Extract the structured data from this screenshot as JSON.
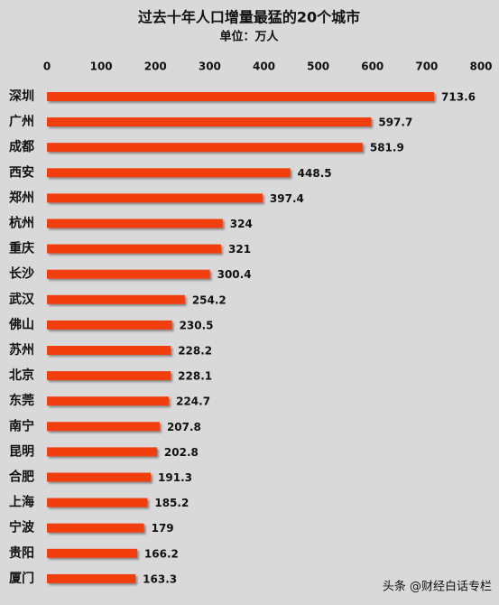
{
  "chart_data": {
    "type": "hbar",
    "title": "过去十年人口增量最猛的20个城市",
    "subtitle": "单位：万人",
    "categories": [
      "深圳",
      "广州",
      "成都",
      "西安",
      "郑州",
      "杭州",
      "重庆",
      "长沙",
      "武汉",
      "佛山",
      "苏州",
      "北京",
      "东莞",
      "南宁",
      "昆明",
      "合肥",
      "上海",
      "宁波",
      "贵阳",
      "厦门"
    ],
    "values": [
      713.6,
      597.7,
      581.9,
      448.5,
      397.4,
      324,
      321,
      300.4,
      254.2,
      230.5,
      228.2,
      228.1,
      224.7,
      207.8,
      202.8,
      191.3,
      185.2,
      179,
      166.2,
      163.3
    ],
    "color": "#f23c10",
    "xlim": [
      0,
      800
    ],
    "xticks": [
      0,
      100,
      200,
      300,
      400,
      500,
      600,
      700,
      800
    ],
    "grid": false,
    "watermark": "头条 @财经白话专栏"
  }
}
